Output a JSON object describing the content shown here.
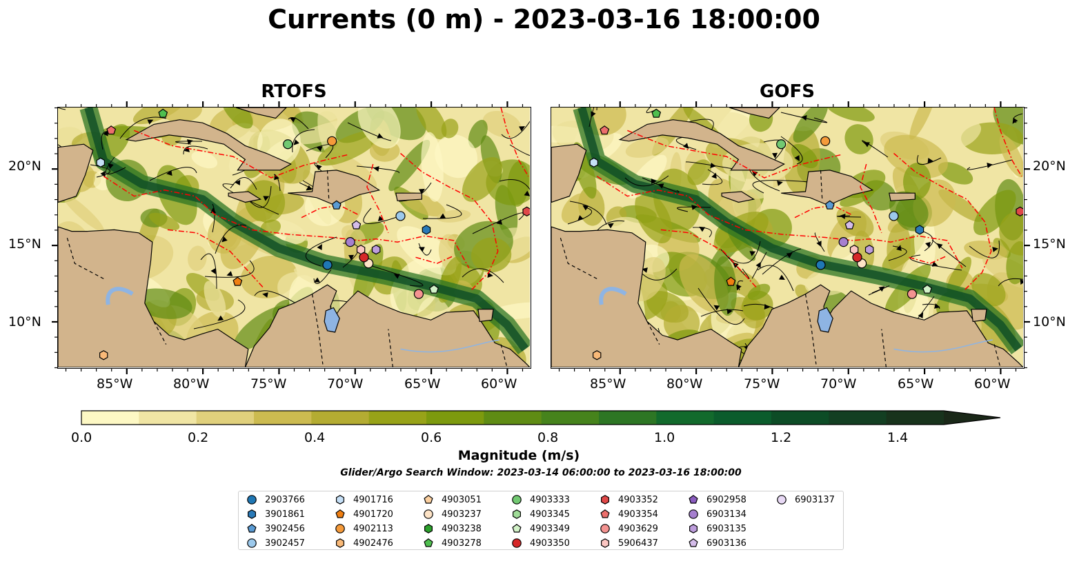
{
  "title": "Currents (0 m) - 2023-03-16 18:00:00",
  "panels": [
    {
      "title": "RTOFS",
      "key": "rtofs"
    },
    {
      "title": "GOFS",
      "key": "gofs"
    }
  ],
  "axes": {
    "lon_ticks": [
      "85°W",
      "80°W",
      "75°W",
      "70°W",
      "65°W",
      "60°W"
    ],
    "lat_ticks": [
      "20°N",
      "15°N",
      "10°N"
    ],
    "lon_range": [
      -89.5,
      -58.5
    ],
    "lat_range": [
      7,
      24
    ]
  },
  "colorbar": {
    "label": "Magnitude (m/s)",
    "ticks": [
      "0.0",
      "0.2",
      "0.4",
      "0.6",
      "0.8",
      "1.0",
      "1.2",
      "1.4"
    ],
    "extend": "max",
    "colors": [
      "#fdf8c4",
      "#f0e5a4",
      "#e0d07c",
      "#ccbb50",
      "#b4ac32",
      "#98a318",
      "#7d9a0e",
      "#5f8c14",
      "#46831c",
      "#2d7624",
      "#126a2c",
      "#0b5c2c",
      "#0d4c26",
      "#133f22",
      "#18331c",
      "#1a2818"
    ]
  },
  "search_window": "Glider/Argo Search Window: 2023-03-14 06:00:00 to 2023-03-16 18:00:00",
  "legend": [
    {
      "id": "2903766",
      "marker": "circle",
      "color": "#1f77b4"
    },
    {
      "id": "3901861",
      "marker": "hexagon",
      "color": "#2a7ab8"
    },
    {
      "id": "3902456",
      "marker": "pentagon",
      "color": "#5a9bd4"
    },
    {
      "id": "3902457",
      "marker": "circle",
      "color": "#9cc9ec"
    },
    {
      "id": "4901716",
      "marker": "hexagon",
      "color": "#c6e0f7"
    },
    {
      "id": "4901720",
      "marker": "pentagon",
      "color": "#f07f12"
    },
    {
      "id": "4902113",
      "marker": "circle",
      "color": "#f59a3a"
    },
    {
      "id": "4902476",
      "marker": "hexagon",
      "color": "#f9b978"
    },
    {
      "id": "4903051",
      "marker": "pentagon",
      "color": "#fbcf9f"
    },
    {
      "id": "4903237",
      "marker": "circle",
      "color": "#fde3c6"
    },
    {
      "id": "4903238",
      "marker": "hexagon",
      "color": "#2ca02c"
    },
    {
      "id": "4903278",
      "marker": "pentagon",
      "color": "#4fbf4f"
    },
    {
      "id": "4903333",
      "marker": "circle",
      "color": "#72c972"
    },
    {
      "id": "4903345",
      "marker": "hexagon",
      "color": "#a0dc98"
    },
    {
      "id": "4903349",
      "marker": "pentagon",
      "color": "#d2f2c8"
    },
    {
      "id": "4903350",
      "marker": "circle",
      "color": "#d62728"
    },
    {
      "id": "4903352",
      "marker": "hexagon",
      "color": "#e04848"
    },
    {
      "id": "4903354",
      "marker": "pentagon",
      "color": "#ec6f6c"
    },
    {
      "id": "4903629",
      "marker": "circle",
      "color": "#f49391"
    },
    {
      "id": "5906437",
      "marker": "hexagon",
      "color": "#fbc6c2"
    },
    {
      "id": "6902958",
      "marker": "pentagon",
      "color": "#8a5cbf"
    },
    {
      "id": "6903134",
      "marker": "circle",
      "color": "#a67fcf"
    },
    {
      "id": "6903135",
      "marker": "hexagon",
      "color": "#bd9ddc"
    },
    {
      "id": "6903136",
      "marker": "pentagon",
      "color": "#d4bce9"
    },
    {
      "id": "6903137",
      "marker": "circle",
      "color": "#e8d9f5"
    }
  ],
  "floats_rtofs": [
    {
      "id": "2903766",
      "lon": -71.8,
      "lat": 13.7
    },
    {
      "id": "3901861",
      "lon": -65.3,
      "lat": 16.0
    },
    {
      "id": "3902456",
      "lon": -71.2,
      "lat": 17.6
    },
    {
      "id": "3902457",
      "lon": -67.0,
      "lat": 16.9
    },
    {
      "id": "4901716",
      "lon": -86.7,
      "lat": 20.4
    },
    {
      "id": "4901720",
      "lon": -77.7,
      "lat": 12.6
    },
    {
      "id": "4902113",
      "lon": -71.5,
      "lat": 21.8
    },
    {
      "id": "4902476",
      "lon": -86.5,
      "lat": 7.8
    },
    {
      "id": "4903237",
      "lon": -69.1,
      "lat": 13.8
    },
    {
      "id": "4903278",
      "lon": -82.6,
      "lat": 23.6
    },
    {
      "id": "4903333",
      "lon": -74.4,
      "lat": 21.6
    },
    {
      "id": "4903349",
      "lon": -64.8,
      "lat": 12.1
    },
    {
      "id": "4903350",
      "lon": -69.4,
      "lat": 14.2
    },
    {
      "id": "4903354",
      "lon": -86.0,
      "lat": 22.5
    },
    {
      "id": "4903629",
      "lon": -65.8,
      "lat": 11.8
    },
    {
      "id": "4903352",
      "lon": -58.7,
      "lat": 17.2
    },
    {
      "id": "5906437",
      "lon": -69.6,
      "lat": 14.7
    },
    {
      "id": "6903134",
      "lon": -70.3,
      "lat": 15.2
    },
    {
      "id": "6903135",
      "lon": -68.6,
      "lat": 14.7
    },
    {
      "id": "6903136",
      "lon": -69.9,
      "lat": 16.3
    }
  ],
  "floats_gofs": [
    {
      "id": "2903766",
      "lon": -71.8,
      "lat": 13.7
    },
    {
      "id": "3901861",
      "lon": -65.3,
      "lat": 16.0
    },
    {
      "id": "3902456",
      "lon": -71.2,
      "lat": 17.6
    },
    {
      "id": "3902457",
      "lon": -67.0,
      "lat": 16.9
    },
    {
      "id": "4901716",
      "lon": -86.7,
      "lat": 20.4
    },
    {
      "id": "4901720",
      "lon": -77.7,
      "lat": 12.6
    },
    {
      "id": "4902113",
      "lon": -71.5,
      "lat": 21.8
    },
    {
      "id": "4902476",
      "lon": -86.5,
      "lat": 7.8
    },
    {
      "id": "4903237",
      "lon": -69.1,
      "lat": 13.8
    },
    {
      "id": "4903278",
      "lon": -82.6,
      "lat": 23.6
    },
    {
      "id": "4903333",
      "lon": -74.4,
      "lat": 21.6
    },
    {
      "id": "4903349",
      "lon": -64.8,
      "lat": 12.1
    },
    {
      "id": "4903350",
      "lon": -69.4,
      "lat": 14.2
    },
    {
      "id": "4903354",
      "lon": -86.0,
      "lat": 22.5
    },
    {
      "id": "4903629",
      "lon": -65.8,
      "lat": 11.8
    },
    {
      "id": "4903352",
      "lon": -58.7,
      "lat": 17.2
    },
    {
      "id": "5906437",
      "lon": -69.6,
      "lat": 14.7
    },
    {
      "id": "6903134",
      "lon": -70.3,
      "lat": 15.2
    },
    {
      "id": "6903135",
      "lon": -68.6,
      "lat": 14.7
    },
    {
      "id": "6903136",
      "lon": -69.9,
      "lat": 16.3
    }
  ],
  "colors": {
    "land": "#d2b48c",
    "lake": "#8eb4e3",
    "eez": "#ff0000",
    "border": "#000000"
  }
}
